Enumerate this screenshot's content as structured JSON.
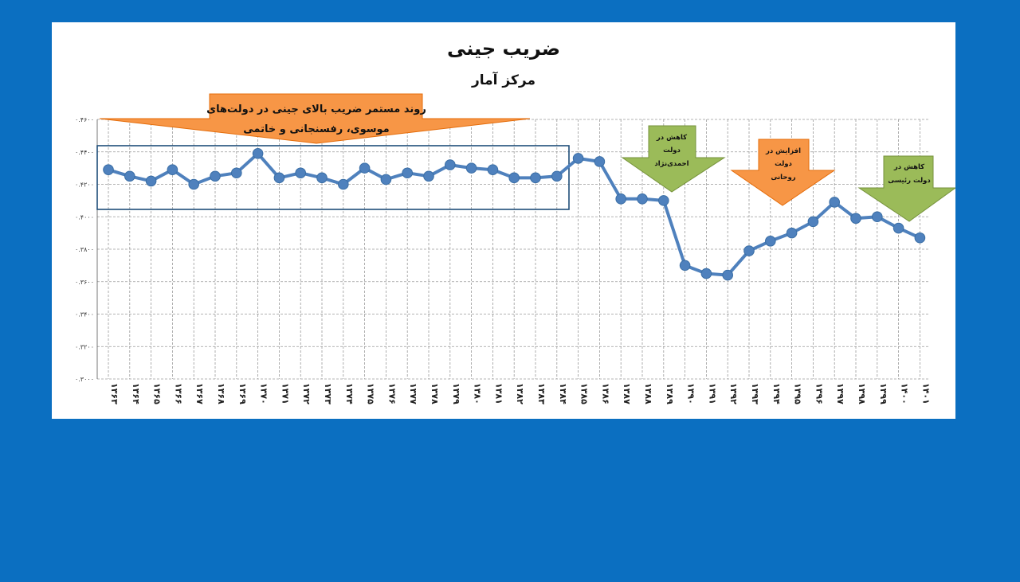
{
  "colors": {
    "background": "#0b6fc1",
    "panel": "#ffffff",
    "line": "#4f81bd",
    "marker": "#4f81bd",
    "orange": "#f79646",
    "green": "#9bbb59",
    "box": "#1f4e79"
  },
  "chart_data": {
    "type": "line",
    "title": "ضریب جینی",
    "subtitle": "مرکز آمار",
    "xlabel": "",
    "ylabel": "",
    "ylim": [
      0.3,
      0.46
    ],
    "y_ticks": [
      "۰.۳۰۰۰",
      "۰.۳۲۰۰",
      "۰.۳۴۰۰",
      "۰.۳۶۰۰",
      "۰.۳۸۰۰",
      "۰.۴۰۰۰",
      "۰.۴۲۰۰",
      "۰.۴۴۰۰",
      "۰.۴۶۰۰"
    ],
    "grid": true,
    "categories": [
      "۱۳۶۳",
      "۱۳۶۴",
      "۱۳۶۵",
      "۱۳۶۶",
      "۱۳۶۷",
      "۱۳۶۸",
      "۱۳۶۹",
      "۱۳۷۰",
      "۱۳۷۱",
      "۱۳۷۲",
      "۱۳۷۳",
      "۱۳۷۴",
      "۱۳۷۵",
      "۱۳۷۶",
      "۱۳۷۷",
      "۱۳۷۸",
      "۱۳۷۹",
      "۱۳۸۰",
      "۱۳۸۱",
      "۱۳۸۲",
      "۱۳۸۳",
      "۱۳۸۴",
      "۱۳۸۵",
      "۱۳۸۶",
      "۱۳۸۷",
      "۱۳۸۸",
      "۱۳۸۹",
      "۱۳۹۰",
      "۱۳۹۱",
      "۱۳۹۲",
      "۱۳۹۳",
      "۱۳۹۴",
      "۱۳۹۵",
      "۱۳۹۶",
      "۱۳۹۷",
      "۱۳۹۸",
      "۱۳۹۹",
      "۱۴۰۰",
      "۱۴۰۱"
    ],
    "series": [
      {
        "values": [
          0.429,
          0.425,
          0.422,
          0.429,
          0.42,
          0.425,
          0.427,
          0.439,
          0.424,
          0.427,
          0.424,
          0.42,
          0.43,
          0.423,
          0.427,
          0.425,
          0.432,
          0.43,
          0.429,
          0.424,
          0.424,
          0.425,
          0.436,
          0.434,
          0.411,
          0.411,
          0.41,
          0.37,
          0.365,
          0.364,
          0.379,
          0.385,
          0.39,
          0.397,
          0.409,
          0.399,
          0.4,
          0.393,
          0.387
        ]
      }
    ],
    "annotations": {
      "banner_line1": "روند مستمر ضریب بالای جینی در دولت‌های",
      "banner_line2": "موسوی، رفسنجانی و خاتمی",
      "arrow1": [
        "کاهش در",
        "دولت",
        "احمدی‌نژاد"
      ],
      "arrow2": [
        "افزایش در",
        "دولت",
        "روحانی"
      ],
      "arrow3": [
        "کاهش در",
        "دولت رئیسی"
      ]
    }
  }
}
